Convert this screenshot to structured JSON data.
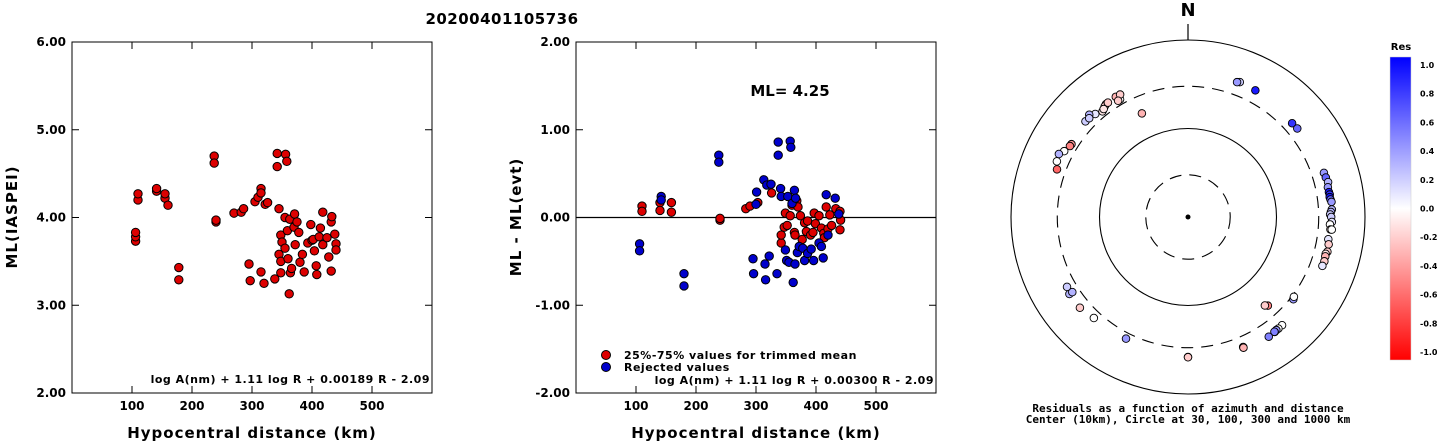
{
  "event_title": "20200401105736",
  "chart_data": [
    {
      "type": "scatter",
      "ylabel": "ML(IASPEI)",
      "xlabel": "Hypocentral distance (km)",
      "xlim": [
        0,
        600
      ],
      "ylim": [
        2.0,
        6.0
      ],
      "x_ticks": [
        "100",
        "200",
        "300",
        "400",
        "500"
      ],
      "y_ticks": [
        "2.00",
        "3.00",
        "4.00",
        "5.00",
        "6.00"
      ],
      "formula": "log A(nm) + 1.11 log R + 0.00189 R - 2.09",
      "grid": false,
      "points": [
        [
          106,
          3.73
        ],
        [
          106,
          3.78
        ],
        [
          106,
          3.83
        ],
        [
          110,
          4.2
        ],
        [
          110,
          4.27
        ],
        [
          141,
          4.3
        ],
        [
          141,
          4.33
        ],
        [
          155,
          4.22
        ],
        [
          155,
          4.27
        ],
        [
          160,
          4.14
        ],
        [
          178,
          3.43
        ],
        [
          178,
          3.29
        ],
        [
          237,
          4.7
        ],
        [
          237,
          4.62
        ],
        [
          240,
          3.95
        ],
        [
          240,
          3.97
        ],
        [
          270,
          4.05
        ],
        [
          282,
          4.06
        ],
        [
          286,
          4.1
        ],
        [
          295,
          3.47
        ],
        [
          297,
          3.28
        ],
        [
          305,
          4.18
        ],
        [
          310,
          4.23
        ],
        [
          315,
          4.33
        ],
        [
          315,
          4.28
        ],
        [
          315,
          3.38
        ],
        [
          320,
          3.25
        ],
        [
          322,
          4.15
        ],
        [
          326,
          4.17
        ],
        [
          338,
          3.3
        ],
        [
          342,
          4.73
        ],
        [
          342,
          4.58
        ],
        [
          345,
          4.1
        ],
        [
          345,
          3.58
        ],
        [
          348,
          3.5
        ],
        [
          348,
          3.37
        ],
        [
          348,
          3.8
        ],
        [
          350,
          3.72
        ],
        [
          355,
          4.0
        ],
        [
          355,
          3.65
        ],
        [
          356,
          4.72
        ],
        [
          358,
          4.64
        ],
        [
          359,
          3.85
        ],
        [
          360,
          3.53
        ],
        [
          362,
          3.13
        ],
        [
          363,
          3.98
        ],
        [
          364,
          3.37
        ],
        [
          366,
          3.42
        ],
        [
          370,
          3.89
        ],
        [
          371,
          4.04
        ],
        [
          372,
          3.69
        ],
        [
          375,
          3.95
        ],
        [
          378,
          3.83
        ],
        [
          380,
          3.49
        ],
        [
          384,
          3.58
        ],
        [
          387,
          3.38
        ],
        [
          393,
          3.71
        ],
        [
          398,
          3.92
        ],
        [
          400,
          3.74
        ],
        [
          402,
          3.75
        ],
        [
          404,
          3.62
        ],
        [
          407,
          3.45
        ],
        [
          408,
          3.35
        ],
        [
          412,
          3.78
        ],
        [
          414,
          3.88
        ],
        [
          418,
          3.69
        ],
        [
          418,
          4.06
        ],
        [
          425,
          3.77
        ],
        [
          428,
          3.55
        ],
        [
          432,
          3.39
        ],
        [
          432,
          3.95
        ],
        [
          433,
          4.01
        ],
        [
          438,
          3.81
        ],
        [
          440,
          3.7
        ],
        [
          440,
          3.63
        ]
      ]
    },
    {
      "type": "scatter",
      "ylabel": "ML - ML(evt)",
      "xlabel": "Hypocentral distance (km)",
      "xlim": [
        0,
        600
      ],
      "ylim": [
        -2.0,
        2.0
      ],
      "x_ticks": [
        "100",
        "200",
        "300",
        "400",
        "500"
      ],
      "y_ticks": [
        "-2.00",
        "-1.00",
        "0.00",
        "1.00",
        "2.00"
      ],
      "formula": "log A(nm) + 1.11 log R + 0.00300 R - 2.09",
      "annotation": "ML= 4.25",
      "zero_line": 0,
      "grid": false,
      "legend": {
        "placement": "bottom-left",
        "entries": [
          {
            "label": "25%-75% values for trimmed mean",
            "color": "#dd0000"
          },
          {
            "label": "Rejected values",
            "color": "#0000cc"
          }
        ]
      },
      "series": [
        {
          "name": "25%-75% values for trimmed mean",
          "color": "#dd0000",
          "points": [
            [
              110,
              0.13
            ],
            [
              110,
              0.07
            ],
            [
              140,
              0.17
            ],
            [
              140,
              0.08
            ],
            [
              159,
              0.17
            ],
            [
              159,
              0.06
            ],
            [
              240,
              -0.03
            ],
            [
              240,
              -0.01
            ],
            [
              283,
              0.1
            ],
            [
              290,
              0.13
            ],
            [
              303,
              0.17
            ],
            [
              326,
              0.28
            ],
            [
              342,
              -0.29
            ],
            [
              342,
              -0.2
            ],
            [
              347,
              -0.11
            ],
            [
              349,
              0.05
            ],
            [
              352,
              -0.09
            ],
            [
              357,
              0.02
            ],
            [
              360,
              0.14
            ],
            [
              364,
              -0.17
            ],
            [
              365,
              -0.2
            ],
            [
              368,
              0.19
            ],
            [
              370,
              0.12
            ],
            [
              374,
              0.02
            ],
            [
              377,
              -0.25
            ],
            [
              381,
              -0.06
            ],
            [
              384,
              -0.16
            ],
            [
              386,
              -0.04
            ],
            [
              391,
              -0.2
            ],
            [
              395,
              -0.17
            ],
            [
              397,
              0.05
            ],
            [
              399,
              -0.07
            ],
            [
              405,
              0.02
            ],
            [
              409,
              -0.12
            ],
            [
              413,
              -0.18
            ],
            [
              414,
              -0.23
            ],
            [
              417,
              0.12
            ],
            [
              420,
              -0.13
            ],
            [
              423,
              0.03
            ],
            [
              426,
              -0.09
            ],
            [
              433,
              0.1
            ],
            [
              440,
              -0.14
            ],
            [
              440,
              0.07
            ],
            [
              441,
              -0.03
            ]
          ]
        },
        {
          "name": "Rejected values",
          "color": "#0000cc",
          "points": [
            [
              106,
              -0.3
            ],
            [
              106,
              -0.38
            ],
            [
              142,
              0.24
            ],
            [
              142,
              0.2
            ],
            [
              180,
              -0.64
            ],
            [
              180,
              -0.78
            ],
            [
              238,
              0.71
            ],
            [
              238,
              0.63
            ],
            [
              295,
              -0.47
            ],
            [
              296,
              -0.64
            ],
            [
              300,
              0.15
            ],
            [
              301,
              0.29
            ],
            [
              313,
              0.43
            ],
            [
              315,
              -0.53
            ],
            [
              316,
              -0.71
            ],
            [
              318,
              0.37
            ],
            [
              322,
              -0.44
            ],
            [
              325,
              0.38
            ],
            [
              335,
              -0.64
            ],
            [
              337,
              0.86
            ],
            [
              337,
              0.71
            ],
            [
              341,
              0.33
            ],
            [
              342,
              0.24
            ],
            [
              349,
              -0.37
            ],
            [
              351,
              -0.49
            ],
            [
              353,
              0.24
            ],
            [
              355,
              -0.51
            ],
            [
              357,
              0.87
            ],
            [
              358,
              0.8
            ],
            [
              360,
              0.16
            ],
            [
              362,
              -0.74
            ],
            [
              364,
              0.31
            ],
            [
              365,
              -0.53
            ],
            [
              366,
              0.22
            ],
            [
              369,
              -0.4
            ],
            [
              372,
              -0.33
            ],
            [
              378,
              -0.35
            ],
            [
              381,
              -0.49
            ],
            [
              386,
              -0.41
            ],
            [
              392,
              -0.36
            ],
            [
              396,
              -0.49
            ],
            [
              405,
              -0.29
            ],
            [
              409,
              -0.33
            ],
            [
              412,
              -0.46
            ],
            [
              417,
              0.26
            ],
            [
              420,
              -0.2
            ],
            [
              432,
              0.22
            ],
            [
              438,
              0.04
            ]
          ]
        }
      ]
    },
    {
      "type": "polar-scatter",
      "north_label": "N",
      "caption_line1": "Residuals as a function of azimuth and distance",
      "caption_line2": "Center (10km), Circle at 30, 100, 300 and 1000 km",
      "rings_km": [
        30,
        100,
        300,
        1000
      ],
      "colorbar": {
        "title": "Res",
        "ticks": [
          "1.0",
          "0.8",
          "0.6",
          "0.4",
          "0.2",
          "0.0",
          "-0.2",
          "-0.4",
          "-0.6",
          "-0.8",
          "-1.0"
        ],
        "max_color": "#0000ff",
        "mid_color": "#ffffff",
        "min_color": "#ff0000"
      },
      "points_azimuth_distance_residual": [
        [
          313,
          384,
          0.2
        ],
        [
          318,
          368,
          0.1
        ],
        [
          316,
          404,
          0.3
        ],
        [
          315,
          379,
          0.2
        ],
        [
          321,
          343,
          -0.1
        ],
        [
          324,
          377,
          -0.3
        ],
        [
          323,
          367,
          -0.2
        ],
        [
          322,
          353,
          -0.1
        ],
        [
          325,
          378,
          -0.2
        ],
        [
          330,
          343,
          0.0
        ],
        [
          329,
          384,
          -0.3
        ],
        [
          331,
          382,
          -0.2
        ],
        [
          329,
          341,
          -0.2
        ],
        [
          298,
          384,
          0.0
        ],
        [
          296,
          420,
          0.3
        ],
        [
          293,
          407,
          0.0
        ],
        [
          302,
          357,
          -0.4
        ],
        [
          301,
          360,
          -0.5
        ],
        [
          290,
          376,
          -0.6
        ],
        [
          336,
          191,
          -0.3
        ],
        [
          21,
          429,
          0.2
        ],
        [
          20,
          418,
          0.4
        ],
        [
          28,
          418,
          0.9
        ],
        [
          48,
          383,
          0.8
        ],
        [
          51,
          388,
          0.6
        ],
        [
          72,
          412,
          0.4
        ],
        [
          74,
          417,
          0.6
        ],
        [
          76,
          428,
          0.3
        ],
        [
          78,
          413,
          0.4
        ],
        [
          80,
          414,
          0.9
        ],
        [
          81,
          418,
          0.8
        ],
        [
          82,
          414,
          0.9
        ],
        [
          83,
          419,
          0.6
        ],
        [
          84,
          427,
          0.4
        ],
        [
          87,
          424,
          0.3
        ],
        [
          88,
          413,
          0.3
        ],
        [
          89,
          404,
          0.2
        ],
        [
          90,
          415,
          0.2
        ],
        [
          92,
          423,
          0.1
        ],
        [
          93,
          404,
          0.0
        ],
        [
          95,
          413,
          -0.1
        ],
        [
          95,
          427,
          0.0
        ],
        [
          99,
          403,
          0.1
        ],
        [
          101,
          416,
          -0.2
        ],
        [
          104,
          420,
          -0.2
        ],
        [
          105,
          408,
          -0.1
        ],
        [
          106,
          411,
          -0.3
        ],
        [
          108,
          417,
          -0.2
        ],
        [
          110,
          413,
          0.1
        ],
        [
          128,
          324,
          0.4
        ],
        [
          127,
          315,
          0.0
        ],
        [
          139,
          417,
          0.0
        ],
        [
          141,
          419,
          0.0
        ],
        [
          142,
          418,
          0.4
        ],
        [
          143,
          424,
          0.6
        ],
        [
          143,
          420,
          0.5
        ],
        [
          146,
          428,
          0.5
        ],
        [
          157,
          394,
          -0.2
        ],
        [
          157,
          402,
          -0.3
        ],
        [
          180,
          382,
          -0.3
        ],
        [
          180,
          384,
          -0.2
        ],
        [
          207,
          349,
          0.4
        ],
        [
          237,
          396,
          0.3
        ],
        [
          230,
          393,
          -0.2
        ],
        [
          237,
          362,
          0.3
        ],
        [
          240,
          379,
          0.2
        ],
        [
          138,
          223,
          -0.5
        ],
        [
          139,
          211,
          -0.2
        ],
        [
          223,
          363,
          0.0
        ]
      ]
    }
  ]
}
